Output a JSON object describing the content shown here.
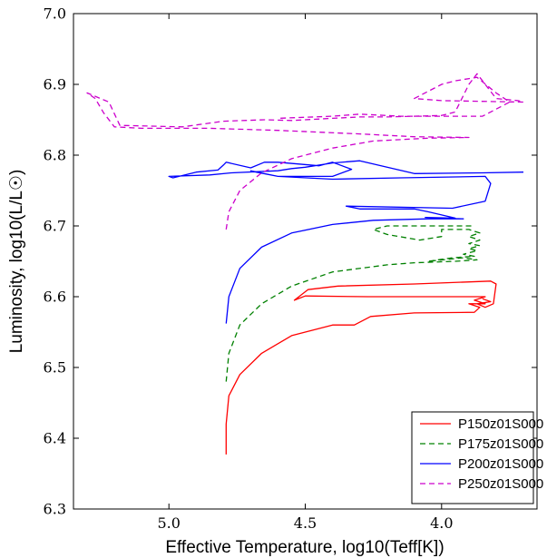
{
  "chart_data": {
    "type": "line",
    "title": "",
    "xlabel": "Effective Temperature, log10(Teff[K])",
    "ylabel": "Luminosity, log10(L/L☉)",
    "xlim": [
      5.35,
      3.65
    ],
    "ylim": [
      6.3,
      7.0
    ],
    "x_inverted": true,
    "xticks": [
      5.0,
      4.5,
      4.0
    ],
    "yticks": [
      6.3,
      6.4,
      6.5,
      6.6,
      6.7,
      6.8,
      6.9,
      7.0
    ],
    "xtick_labels": [
      "5.0",
      "4.5",
      "4.0"
    ],
    "ytick_labels": [
      "6.3",
      "6.4",
      "6.5",
      "6.6",
      "6.7",
      "6.8",
      "6.9",
      "7.0"
    ],
    "legend_position": "lower-right",
    "grid": false,
    "series": [
      {
        "name": "P150z01S000",
        "color": "#ff0000",
        "dash": "solid",
        "points": [
          [
            4.79,
            6.377
          ],
          [
            4.79,
            6.42
          ],
          [
            4.78,
            6.46
          ],
          [
            4.74,
            6.49
          ],
          [
            4.66,
            6.52
          ],
          [
            4.55,
            6.545
          ],
          [
            4.4,
            6.56
          ],
          [
            4.32,
            6.56
          ],
          [
            4.26,
            6.572
          ],
          [
            4.1,
            6.577
          ],
          [
            3.88,
            6.578
          ],
          [
            3.86,
            6.585
          ],
          [
            3.9,
            6.59
          ],
          [
            3.84,
            6.59
          ],
          [
            3.88,
            6.595
          ],
          [
            3.84,
            6.6
          ],
          [
            4.27,
            6.6
          ],
          [
            4.5,
            6.601
          ],
          [
            4.54,
            6.595
          ],
          [
            4.49,
            6.61
          ],
          [
            4.38,
            6.615
          ],
          [
            4.1,
            6.618
          ],
          [
            3.82,
            6.622
          ],
          [
            3.8,
            6.618
          ],
          [
            3.81,
            6.59
          ],
          [
            3.84,
            6.585
          ],
          [
            3.87,
            6.59
          ],
          [
            3.82,
            6.593
          ],
          [
            3.85,
            6.597
          ]
        ]
      },
      {
        "name": "P175z01S000",
        "color": "#008000",
        "dash": "dashed",
        "points": [
          [
            4.79,
            6.48
          ],
          [
            4.78,
            6.52
          ],
          [
            4.74,
            6.56
          ],
          [
            4.66,
            6.59
          ],
          [
            4.55,
            6.615
          ],
          [
            4.4,
            6.635
          ],
          [
            4.2,
            6.645
          ],
          [
            4.1,
            6.648
          ],
          [
            3.95,
            6.65
          ],
          [
            3.87,
            6.652
          ],
          [
            3.92,
            6.655
          ],
          [
            4.05,
            6.65
          ],
          [
            3.96,
            6.655
          ],
          [
            3.88,
            6.657
          ],
          [
            3.92,
            6.66
          ],
          [
            3.87,
            6.665
          ],
          [
            3.9,
            6.668
          ],
          [
            3.86,
            6.672
          ],
          [
            3.9,
            6.675
          ],
          [
            3.86,
            6.68
          ],
          [
            3.9,
            6.685
          ],
          [
            3.86,
            6.69
          ],
          [
            3.9,
            6.695
          ],
          [
            4.0,
            6.695
          ],
          [
            4.0,
            6.685
          ],
          [
            4.08,
            6.68
          ],
          [
            4.2,
            6.688
          ],
          [
            4.25,
            6.695
          ],
          [
            4.2,
            6.7
          ],
          [
            4.0,
            6.7
          ],
          [
            3.88,
            6.7
          ]
        ]
      },
      {
        "name": "P200z01S000",
        "color": "#0000ff",
        "dash": "solid",
        "points": [
          [
            4.79,
            6.562
          ],
          [
            4.78,
            6.6
          ],
          [
            4.74,
            6.64
          ],
          [
            4.66,
            6.67
          ],
          [
            4.55,
            6.69
          ],
          [
            4.4,
            6.702
          ],
          [
            4.25,
            6.708
          ],
          [
            4.05,
            6.71
          ],
          [
            3.92,
            6.71
          ],
          [
            4.06,
            6.712
          ],
          [
            3.95,
            6.711
          ],
          [
            4.05,
            6.72
          ],
          [
            4.1,
            6.724
          ],
          [
            4.3,
            6.724
          ],
          [
            4.35,
            6.728
          ],
          [
            3.96,
            6.725
          ],
          [
            3.84,
            6.735
          ],
          [
            3.82,
            6.76
          ],
          [
            3.84,
            6.77
          ],
          [
            4.15,
            6.768
          ],
          [
            4.4,
            6.766
          ],
          [
            4.6,
            6.77
          ],
          [
            4.68,
            6.776
          ],
          [
            4.7,
            6.778
          ],
          [
            4.6,
            6.77
          ],
          [
            4.4,
            6.77
          ],
          [
            4.33,
            6.78
          ],
          [
            4.4,
            6.79
          ],
          [
            4.45,
            6.785
          ],
          [
            4.6,
            6.79
          ],
          [
            4.65,
            6.79
          ],
          [
            4.7,
            6.782
          ],
          [
            4.79,
            6.79
          ],
          [
            4.8,
            6.786
          ],
          [
            4.82,
            6.779
          ],
          [
            4.9,
            6.776
          ],
          [
            4.985,
            6.768
          ],
          [
            5.0,
            6.77
          ],
          [
            4.85,
            6.772
          ],
          [
            4.77,
            6.775
          ],
          [
            4.6,
            6.778
          ],
          [
            4.55,
            6.781
          ],
          [
            4.5,
            6.783
          ],
          [
            4.4,
            6.789
          ],
          [
            4.3,
            6.792
          ],
          [
            4.1,
            6.774
          ],
          [
            3.85,
            6.775
          ],
          [
            3.7,
            6.776
          ]
        ]
      },
      {
        "name": "P250z01S000",
        "color": "#cc00cc",
        "dash": "dashed",
        "points": [
          [
            4.79,
            6.695
          ],
          [
            4.78,
            6.72
          ],
          [
            4.74,
            6.75
          ],
          [
            4.66,
            6.775
          ],
          [
            4.55,
            6.795
          ],
          [
            4.4,
            6.81
          ],
          [
            4.25,
            6.82
          ],
          [
            4.05,
            6.824
          ],
          [
            3.9,
            6.825
          ],
          [
            4.1,
            6.826
          ],
          [
            4.3,
            6.83
          ],
          [
            4.6,
            6.835
          ],
          [
            4.85,
            6.838
          ],
          [
            5.1,
            6.838
          ],
          [
            5.2,
            6.84
          ],
          [
            5.24,
            6.86
          ],
          [
            5.27,
            6.88
          ],
          [
            5.3,
            6.888
          ],
          [
            5.22,
            6.875
          ],
          [
            5.18,
            6.842
          ],
          [
            4.95,
            6.84
          ],
          [
            4.8,
            6.848
          ],
          [
            4.65,
            6.85
          ],
          [
            4.55,
            6.849
          ],
          [
            4.4,
            6.852
          ],
          [
            4.3,
            6.854
          ],
          [
            4.2,
            6.854
          ],
          [
            4.0,
            6.856
          ],
          [
            3.95,
            6.861
          ],
          [
            3.9,
            6.9
          ],
          [
            3.87,
            6.915
          ],
          [
            3.8,
            6.88
          ],
          [
            3.72,
            6.877
          ],
          [
            3.7,
            6.875
          ],
          [
            4.0,
            6.877
          ],
          [
            4.1,
            6.88
          ],
          [
            4.0,
            6.9
          ],
          [
            3.95,
            6.905
          ],
          [
            3.87,
            6.91
          ],
          [
            3.8,
            6.888
          ],
          [
            3.75,
            6.875
          ],
          [
            3.85,
            6.855
          ],
          [
            4.05,
            6.855
          ],
          [
            4.15,
            6.855
          ],
          [
            4.3,
            6.858
          ],
          [
            4.4,
            6.855
          ],
          [
            4.6,
            6.852
          ]
        ]
      }
    ]
  }
}
